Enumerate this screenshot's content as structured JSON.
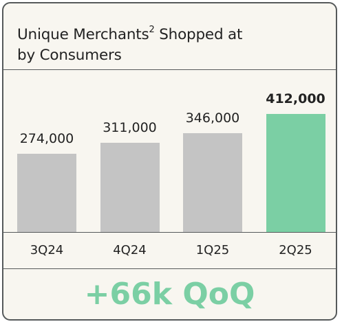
{
  "chart_data": {
    "type": "bar",
    "title_main": "Unique Merchants",
    "title_sup": "2",
    "title_rest": " Shopped at",
    "title_line2": "by Consumers",
    "categories": [
      "3Q24",
      "4Q24",
      "1Q25",
      "2Q25"
    ],
    "values": [
      274000,
      311000,
      346000,
      412000
    ],
    "value_labels": [
      "274,000",
      "311,000",
      "346,000",
      "412,000"
    ],
    "highlight_index": 3,
    "ylim": [
      0,
      412000
    ],
    "colors": {
      "default": "#c4c4c4",
      "highlight": "#7bcfa4"
    },
    "annotation": "+66k QoQ"
  }
}
